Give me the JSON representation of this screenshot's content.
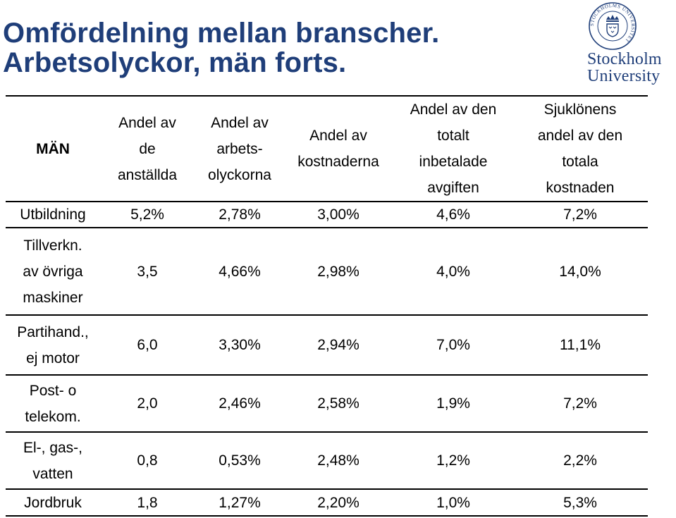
{
  "title": {
    "line1": "Omfördelning mellan branscher.",
    "line2": "Arbetsolyckor, män forts."
  },
  "logo": {
    "line1": "Stockholm",
    "line2": "University",
    "seal_text": "STOCKHOLMS UNIVERSITET"
  },
  "colors": {
    "title": "#1f3e79",
    "logo": "#1f3e79",
    "rules": "#000000"
  },
  "table": {
    "corner": "MÄN",
    "columns": [
      "Andel av\nde\nanställda",
      "Andel av\narbets-\nolyckorna",
      "Andel av\nkostnaderna",
      "Andel av den\ntotalt\ninbetalade\navgiften",
      "Sjuklönens\nandel av den\ntotala\nkostnaden"
    ],
    "rows": [
      {
        "label": "Utbildning",
        "values": [
          "5,2%",
          "2,78%",
          "3,00%",
          "4,6%",
          "7,2%"
        ]
      },
      {
        "label": "Tillverkn.\nav övriga\nmaskiner",
        "values": [
          "3,5",
          "4,66%",
          "2,98%",
          "4,0%",
          "14,0%"
        ]
      },
      {
        "label": "Partihand.,\nej motor",
        "values": [
          "6,0",
          "3,30%",
          "2,94%",
          "7,0%",
          "11,1%"
        ]
      },
      {
        "label": "Post- o\ntelekom.",
        "values": [
          "2,0",
          "2,46%",
          "2,58%",
          "1,9%",
          "7,2%"
        ]
      },
      {
        "label": "El-, gas-,\nvatten",
        "values": [
          "0,8",
          "0,53%",
          "2,48%",
          "1,2%",
          "2,2%"
        ]
      },
      {
        "label": "Jordbruk",
        "values": [
          "1,8",
          "1,27%",
          "2,20%",
          "1,0%",
          "5,3%"
        ]
      }
    ]
  }
}
